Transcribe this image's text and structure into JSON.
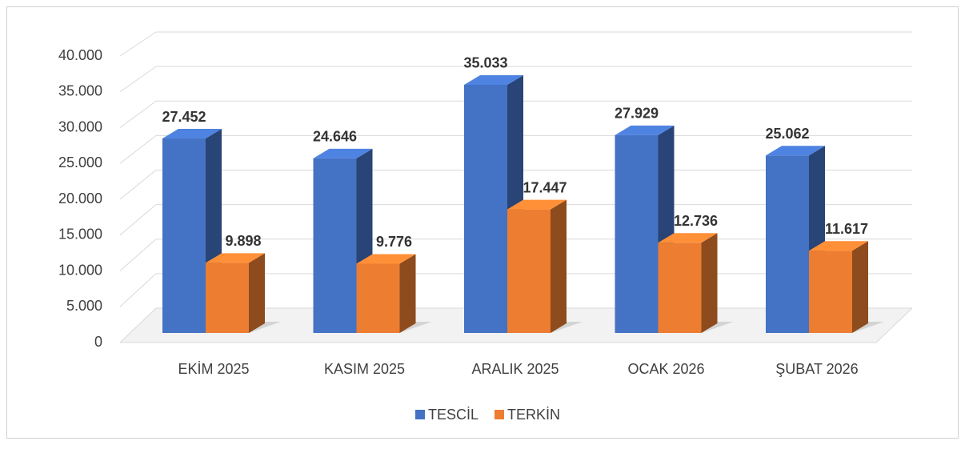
{
  "chart_data": {
    "type": "bar3d",
    "categories": [
      "EKİM 2025",
      "KASIM 2025",
      "ARALIK 2025",
      "OCAK 2026",
      "ŞUBAT 2026"
    ],
    "series": [
      {
        "name": "TESCİL",
        "color": "#4472c4",
        "values": [
          27452,
          24646,
          35033,
          27929,
          25062
        ],
        "value_labels": [
          "27.452",
          "24.646",
          "35.033",
          "27.929",
          "25.062"
        ]
      },
      {
        "name": "TERKİN",
        "color": "#ed7d31",
        "values": [
          9898,
          9776,
          17447,
          12736,
          11617
        ],
        "value_labels": [
          "9.898",
          "9.776",
          "17.447",
          "12.736",
          "11.617"
        ]
      }
    ],
    "ylim": [
      0,
      40000
    ],
    "yticks": [
      0,
      {
        "value": 5000,
        "label": "5.000"
      },
      {
        "value": 10000,
        "label": "10.000"
      },
      {
        "value": 15000,
        "label": "15.000"
      },
      {
        "value": 20000,
        "label": "20.000"
      },
      {
        "value": 25000,
        "label": "25.000"
      },
      {
        "value": 30000,
        "label": "30.000"
      },
      {
        "value": 35000,
        "label": "35.000"
      },
      {
        "value": 40000,
        "label": "40.000"
      }
    ],
    "grid": true,
    "legend": "bottom"
  }
}
